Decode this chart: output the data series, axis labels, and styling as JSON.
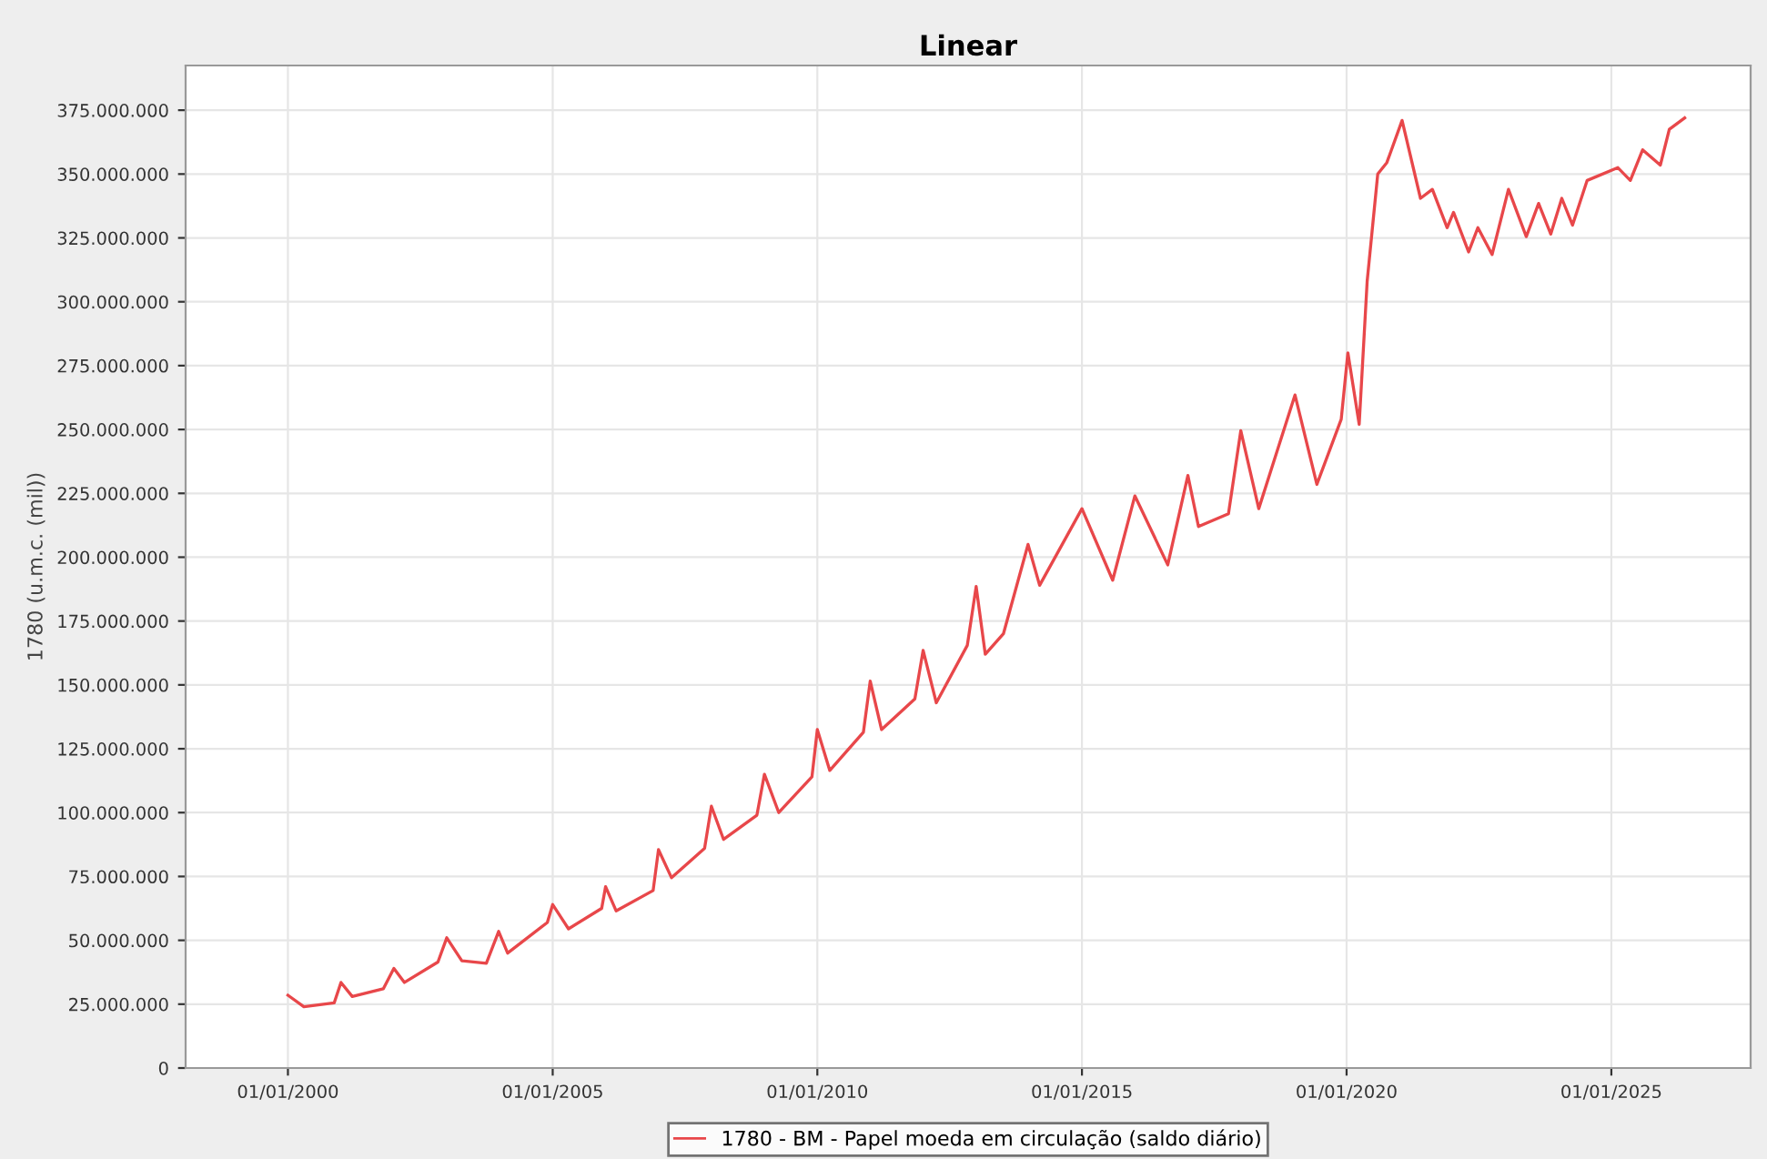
{
  "chart_data": {
    "type": "line",
    "title": "Linear",
    "ylabel": "1780 (u.m.c. (mil))",
    "xlim": [
      "1998-01-25",
      "2027-08-20"
    ],
    "ylim": [
      0,
      392500000
    ],
    "xticks": [
      {
        "value": "2000-01-01",
        "label": "01/01/2000"
      },
      {
        "value": "2005-01-01",
        "label": "01/01/2005"
      },
      {
        "value": "2010-01-01",
        "label": "01/01/2010"
      },
      {
        "value": "2015-01-01",
        "label": "01/01/2015"
      },
      {
        "value": "2020-01-01",
        "label": "01/01/2020"
      },
      {
        "value": "2025-01-01",
        "label": "01/01/2025"
      }
    ],
    "yticks": [
      {
        "value": 0,
        "label": "0"
      },
      {
        "value": 25000000,
        "label": "25.000.000"
      },
      {
        "value": 50000000,
        "label": "50.000.000"
      },
      {
        "value": 75000000,
        "label": "75.000.000"
      },
      {
        "value": 100000000,
        "label": "100.000.000"
      },
      {
        "value": 125000000,
        "label": "125.000.000"
      },
      {
        "value": 150000000,
        "label": "150.000.000"
      },
      {
        "value": 175000000,
        "label": "175.000.000"
      },
      {
        "value": 200000000,
        "label": "200.000.000"
      },
      {
        "value": 225000000,
        "label": "225.000.000"
      },
      {
        "value": 250000000,
        "label": "250.000.000"
      },
      {
        "value": 275000000,
        "label": "275.000.000"
      },
      {
        "value": 300000000,
        "label": "300.000.000"
      },
      {
        "value": 325000000,
        "label": "325.000.000"
      },
      {
        "value": 350000000,
        "label": "350.000.000"
      },
      {
        "value": 375000000,
        "label": "375.000.000"
      }
    ],
    "grid": true,
    "legend": "bottom",
    "marker": "none",
    "line_style": "solid",
    "x": [
      "2000-01-01",
      "2000-04-20",
      "2000-11-15",
      "2001-01-01",
      "2001-03-20",
      "2001-10-20",
      "2002-01-01",
      "2002-03-15",
      "2002-11-01",
      "2003-01-01",
      "2003-04-15",
      "2003-10-01",
      "2003-12-25",
      "2004-02-25",
      "2004-11-25",
      "2005-01-01",
      "2005-04-20",
      "2005-12-05",
      "2006-01-01",
      "2006-03-15",
      "2006-11-25",
      "2007-01-01",
      "2007-04-01",
      "2007-11-15",
      "2008-01-01",
      "2008-03-25",
      "2008-11-10",
      "2009-01-01",
      "2009-04-10",
      "2009-11-25",
      "2010-01-01",
      "2010-03-28",
      "2010-11-15",
      "2011-01-01",
      "2011-03-20",
      "2011-11-05",
      "2012-01-01",
      "2012-04-01",
      "2012-11-01",
      "2013-01-01",
      "2013-03-05",
      "2013-07-08",
      "2013-12-25",
      "2014-03-15",
      "2015-01-01",
      "2015-08-01",
      "2016-01-01",
      "2016-08-15",
      "2017-01-01",
      "2017-03-15",
      "2017-10-08",
      "2018-01-01",
      "2018-05-05",
      "2019-01-10",
      "2019-06-10",
      "2019-11-25",
      "2020-01-10",
      "2020-03-28",
      "2020-05-22",
      "2020-08-03",
      "2020-10-05",
      "2021-01-18",
      "2021-05-25",
      "2021-08-15",
      "2021-11-25",
      "2022-01-08",
      "2022-04-22",
      "2022-06-25",
      "2022-10-01",
      "2023-01-22",
      "2023-05-25",
      "2023-08-18",
      "2023-11-10",
      "2024-01-25",
      "2024-04-08",
      "2024-07-18",
      "2025-02-15",
      "2025-05-12",
      "2025-08-05",
      "2025-12-05",
      "2026-02-05",
      "2026-05-22"
    ],
    "series": [
      {
        "name": "1780 - BM - Papel moeda em circulação (saldo diário)",
        "color": "#e8474a",
        "values": [
          28500000,
          24000000,
          25500000,
          33500000,
          28000000,
          31000000,
          39000000,
          33500000,
          41500000,
          51000000,
          42000000,
          41000000,
          53500000,
          45000000,
          57000000,
          64000000,
          54500000,
          62500000,
          71000000,
          61500000,
          69500000,
          85500000,
          74500000,
          86000000,
          102500000,
          89500000,
          99000000,
          115000000,
          100000000,
          114000000,
          132500000,
          116500000,
          131500000,
          151500000,
          132500000,
          144500000,
          163500000,
          143000000,
          165500000,
          188500000,
          162000000,
          170000000,
          205000000,
          189000000,
          219000000,
          191000000,
          224000000,
          197000000,
          232000000,
          212000000,
          217000000,
          249500000,
          219000000,
          263500000,
          228500000,
          254000000,
          280000000,
          252000000,
          308000000,
          350000000,
          354500000,
          371000000,
          340500000,
          344000000,
          329000000,
          335000000,
          319500000,
          329000000,
          318500000,
          344000000,
          325500000,
          338500000,
          326500000,
          340500000,
          330000000,
          347500000,
          352500000,
          347500000,
          359500000,
          353500000,
          367500000,
          372000000
        ]
      }
    ]
  }
}
